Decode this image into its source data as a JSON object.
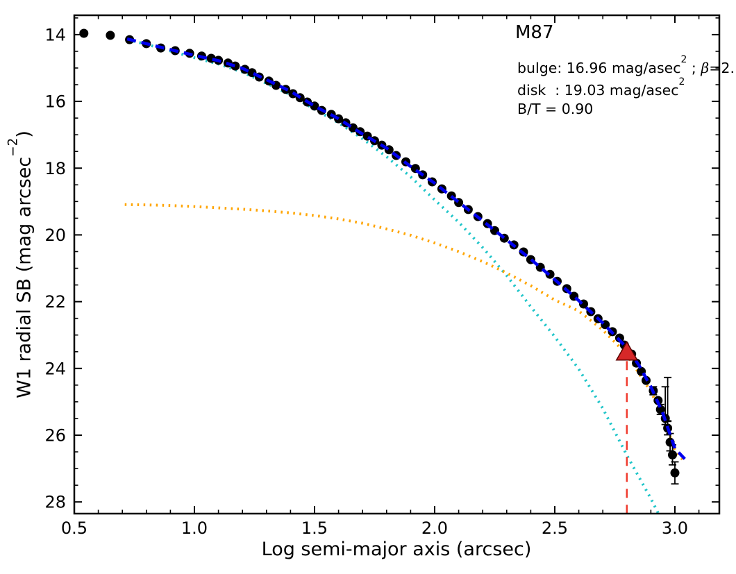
{
  "labels": {
    "xlabel": "Log semi-major axis (arcsec)",
    "ylabel_pre": "W1 radial SB (mag arcsec",
    "ylabel_sup": "−2",
    "ylabel_post": ")"
  },
  "annotations": {
    "galaxy": "M87",
    "line1_pre": "bulge: 16.96 mag/asec",
    "line1_sup": "2",
    "line1_mid": " ; ",
    "line1_beta": "β",
    "line1_post": "=2.",
    "line2_pre": "disk  : 19.03 mag/asec",
    "line2_sup": "2",
    "line3": "B/T = 0.90"
  },
  "colors": {
    "data_points": "#000000",
    "bulge_model": "#1fc5c9",
    "disk_model": "#ffa500",
    "total_model": "#0000ee",
    "truncation_line": "#f03b2e",
    "truncation_marker_fill": "#d62828",
    "truncation_marker_edge": "#5a0000",
    "axes": "#000000"
  },
  "chart_data": {
    "type": "scatter",
    "title": "M87",
    "xlabel": "Log semi-major axis (arcsec)",
    "ylabel": "W1 radial SB (mag arcsec^-2)",
    "xlim": [
      0.5,
      3.185
    ],
    "ylim": [
      13.42,
      28.35
    ],
    "y_axis_inverted_magnitudes": true,
    "grid": false,
    "legend": "none",
    "x_tick_values": [
      0.5,
      1.0,
      1.5,
      2.0,
      2.5,
      3.0
    ],
    "x_tick_labels": [
      "0.5",
      "1.0",
      "1.5",
      "2.0",
      "2.5",
      "3.0"
    ],
    "x_minor_step": 0.1,
    "y_tick_values": [
      14,
      16,
      18,
      20,
      22,
      24,
      26,
      28
    ],
    "y_tick_labels": [
      "14",
      "16",
      "18",
      "20",
      "22",
      "24",
      "26",
      "28"
    ],
    "y_minor_step": 0.5,
    "fit_parameters": {
      "bulge_mag_asec2": 16.96,
      "beta_text": "2.",
      "disk_mag_asec2": 19.03,
      "bulge_to_total": 0.9,
      "truncation_log_radius": 2.8
    },
    "series": [
      {
        "name": "bulge-model",
        "kind": "dotted",
        "color": "#1fc5c9",
        "points": [
          [
            0.72,
            14.15
          ],
          [
            0.8,
            14.29
          ],
          [
            0.9,
            14.49
          ],
          [
            1.0,
            14.69
          ],
          [
            1.1,
            14.88
          ],
          [
            1.2,
            15.12
          ],
          [
            1.3,
            15.46
          ],
          [
            1.4,
            15.8
          ],
          [
            1.5,
            16.24
          ],
          [
            1.6,
            16.64
          ],
          [
            1.7,
            17.12
          ],
          [
            1.8,
            17.66
          ],
          [
            1.9,
            18.26
          ],
          [
            2.0,
            18.95
          ],
          [
            2.1,
            19.62
          ],
          [
            2.2,
            20.38
          ],
          [
            2.3,
            21.22
          ],
          [
            2.4,
            22.15
          ],
          [
            2.5,
            23.05
          ],
          [
            2.6,
            24.02
          ],
          [
            2.7,
            25.2
          ],
          [
            2.8,
            26.6
          ],
          [
            2.85,
            27.25
          ],
          [
            2.9,
            27.9
          ],
          [
            2.93,
            28.33
          ]
        ]
      },
      {
        "name": "disk-model",
        "kind": "dotted",
        "color": "#ffa500",
        "points": [
          [
            0.71,
            19.09
          ],
          [
            0.8,
            19.1
          ],
          [
            0.9,
            19.12
          ],
          [
            1.0,
            19.15
          ],
          [
            1.1,
            19.19
          ],
          [
            1.2,
            19.23
          ],
          [
            1.3,
            19.28
          ],
          [
            1.4,
            19.34
          ],
          [
            1.5,
            19.42
          ],
          [
            1.6,
            19.52
          ],
          [
            1.7,
            19.65
          ],
          [
            1.8,
            19.82
          ],
          [
            1.9,
            20.01
          ],
          [
            2.0,
            20.24
          ],
          [
            2.1,
            20.5
          ],
          [
            2.2,
            20.8
          ],
          [
            2.3,
            21.14
          ],
          [
            2.4,
            21.52
          ],
          [
            2.5,
            21.95
          ],
          [
            2.6,
            22.28
          ],
          [
            2.7,
            22.85
          ],
          [
            2.8,
            23.58
          ],
          [
            2.9,
            24.7
          ],
          [
            2.95,
            25.42
          ],
          [
            3.0,
            26.45
          ],
          [
            3.04,
            26.8
          ]
        ]
      },
      {
        "name": "data",
        "kind": "scatter",
        "color": "#000000",
        "points": [
          [
            0.54,
            13.96
          ],
          [
            0.65,
            14.02
          ],
          [
            0.73,
            14.15
          ],
          [
            0.8,
            14.27
          ],
          [
            0.86,
            14.4
          ],
          [
            0.92,
            14.48
          ],
          [
            0.98,
            14.56
          ],
          [
            1.03,
            14.64
          ],
          [
            1.07,
            14.71
          ],
          [
            1.1,
            14.77
          ],
          [
            1.14,
            14.85
          ],
          [
            1.17,
            14.94
          ],
          [
            1.21,
            15.04
          ],
          [
            1.24,
            15.14
          ],
          [
            1.27,
            15.27
          ],
          [
            1.31,
            15.39
          ],
          [
            1.34,
            15.52
          ],
          [
            1.38,
            15.64
          ],
          [
            1.41,
            15.77
          ],
          [
            1.44,
            15.89
          ],
          [
            1.47,
            16.02
          ],
          [
            1.5,
            16.14
          ],
          [
            1.53,
            16.27
          ],
          [
            1.57,
            16.39
          ],
          [
            1.6,
            16.52
          ],
          [
            1.63,
            16.64
          ],
          [
            1.66,
            16.79
          ],
          [
            1.69,
            16.91
          ],
          [
            1.72,
            17.04
          ],
          [
            1.75,
            17.18
          ],
          [
            1.78,
            17.31
          ],
          [
            1.81,
            17.45
          ],
          [
            1.84,
            17.62
          ],
          [
            1.88,
            17.81
          ],
          [
            1.92,
            18.01
          ],
          [
            1.95,
            18.2
          ],
          [
            1.99,
            18.41
          ],
          [
            2.03,
            18.62
          ],
          [
            2.07,
            18.83
          ],
          [
            2.1,
            19.03
          ],
          [
            2.14,
            19.24
          ],
          [
            2.18,
            19.45
          ],
          [
            2.22,
            19.66
          ],
          [
            2.25,
            19.87
          ],
          [
            2.29,
            20.1
          ],
          [
            2.33,
            20.3
          ],
          [
            2.37,
            20.51
          ],
          [
            2.4,
            20.74
          ],
          [
            2.44,
            20.97
          ],
          [
            2.48,
            21.18
          ],
          [
            2.51,
            21.39
          ],
          [
            2.55,
            21.61
          ],
          [
            2.58,
            21.84
          ],
          [
            2.62,
            22.07
          ],
          [
            2.65,
            22.3
          ],
          [
            2.68,
            22.51
          ],
          [
            2.71,
            22.69
          ],
          [
            2.74,
            22.9
          ],
          [
            2.77,
            23.09
          ],
          [
            2.79,
            23.3
          ],
          [
            2.82,
            23.57
          ],
          [
            2.84,
            23.84
          ],
          [
            2.86,
            24.09
          ],
          [
            2.88,
            24.36
          ],
          [
            2.91,
            24.67
          ],
          [
            2.93,
            24.96
          ],
          [
            2.94,
            25.23
          ],
          [
            2.96,
            25.5
          ],
          [
            2.97,
            25.79
          ],
          [
            2.98,
            26.21
          ],
          [
            2.99,
            26.59
          ],
          [
            3.0,
            27.13
          ]
        ],
        "error_bars": [
          [
            2.91,
            24.67,
            0.12,
            0.12
          ],
          [
            2.94,
            25.23,
            0.15,
            0.15
          ],
          [
            2.96,
            25.5,
            0.95,
            0.18
          ],
          [
            2.97,
            25.45,
            1.18,
            0.12
          ],
          [
            2.97,
            25.79,
            0.2,
            0.2
          ],
          [
            2.98,
            26.21,
            0.26,
            0.26
          ],
          [
            2.99,
            26.59,
            0.3,
            0.3
          ],
          [
            3.0,
            27.13,
            0.33,
            0.33
          ]
        ]
      },
      {
        "name": "total-model",
        "kind": "dashed",
        "color": "#0000ee",
        "points": [
          [
            0.72,
            14.13
          ],
          [
            0.8,
            14.27
          ],
          [
            0.9,
            14.45
          ],
          [
            1.0,
            14.62
          ],
          [
            1.1,
            14.78
          ],
          [
            1.2,
            15.01
          ],
          [
            1.3,
            15.35
          ],
          [
            1.4,
            15.7
          ],
          [
            1.5,
            16.14
          ],
          [
            1.6,
            16.52
          ],
          [
            1.7,
            16.98
          ],
          [
            1.8,
            17.4
          ],
          [
            1.9,
            17.95
          ],
          [
            2.0,
            18.45
          ],
          [
            2.1,
            19.02
          ],
          [
            2.2,
            19.58
          ],
          [
            2.3,
            20.15
          ],
          [
            2.4,
            20.73
          ],
          [
            2.5,
            21.34
          ],
          [
            2.6,
            21.97
          ],
          [
            2.7,
            22.64
          ],
          [
            2.8,
            23.38
          ],
          [
            2.85,
            23.9
          ],
          [
            2.9,
            24.55
          ],
          [
            2.95,
            25.35
          ],
          [
            3.0,
            26.4
          ],
          [
            3.05,
            26.78
          ]
        ]
      }
    ],
    "truncation": {
      "x": 2.8,
      "marker_y": 23.52,
      "line_y_from": 23.78,
      "line_y_to": 28.35,
      "line_color": "#f03b2e",
      "marker_fill": "#d62828",
      "marker_edge": "#5a0000"
    }
  }
}
